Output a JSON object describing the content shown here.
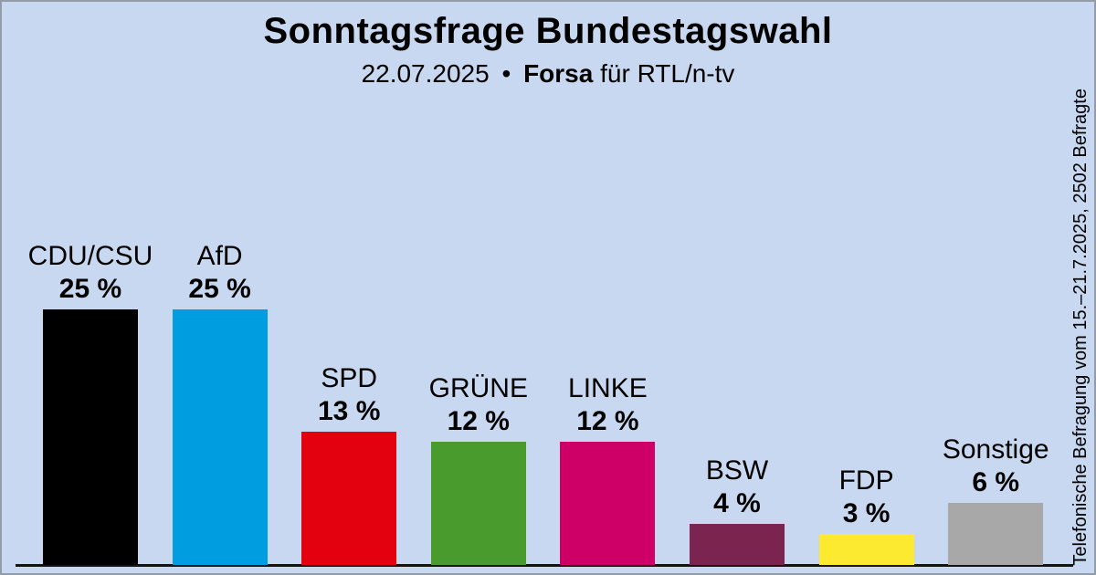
{
  "chart_data": {
    "type": "bar",
    "title": "Sonntagsfrage Bundestagswahl",
    "subtitle": {
      "date": "22.07.2025",
      "separator": "•",
      "source": "Forsa",
      "client": "für RTL/n-tv"
    },
    "categories": [
      "CDU/CSU",
      "AfD",
      "SPD",
      "GRÜNE",
      "LINKE",
      "BSW",
      "FDP",
      "Sonstige"
    ],
    "values": [
      25,
      25,
      13,
      12,
      12,
      4,
      3,
      6
    ],
    "value_labels": [
      "25 %",
      "25 %",
      "13 %",
      "12 %",
      "12 %",
      "4 %",
      "3 %",
      "6 %"
    ],
    "colors": [
      "#000000",
      "#009DE0",
      "#E3000F",
      "#489B2C",
      "#CE0067",
      "#7B2450",
      "#FBEA2F",
      "#A8A8A8"
    ],
    "ylabel": "",
    "xlabel": "",
    "ylim": [
      0,
      28
    ],
    "grid": false,
    "legend": false,
    "note": "Telefonische Befragung vom 15.–21.7.2025, 2502 Befragte",
    "background_color": "#C8D8F0",
    "axis_color": "#141414"
  }
}
